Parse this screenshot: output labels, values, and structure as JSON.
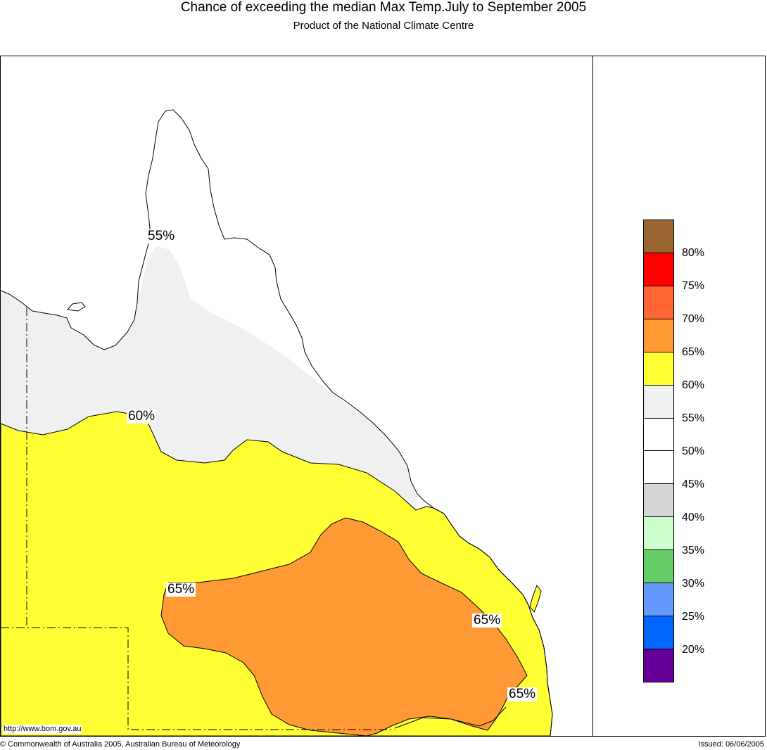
{
  "header": {
    "title": "Chance of exceeding the median Max Temp.July to September 2005",
    "subtitle": "Product of the National Climate Centre"
  },
  "map": {
    "url_text": "http://www.bom.gov.au",
    "contour_labels": [
      "55%",
      "60%",
      "65%",
      "65%",
      "65%"
    ],
    "region_colors": {
      "55-60": "#f0f0f0",
      "60-65": "#ffff33",
      "65-70": "#ff9933",
      "50-55": "#ffffff"
    }
  },
  "legend": {
    "labels": [
      "80%",
      "75%",
      "70%",
      "65%",
      "60%",
      "55%",
      "50%",
      "45%",
      "40%",
      "35%",
      "30%",
      "25%",
      "20%"
    ],
    "colors": [
      "#996633",
      "#ff0000",
      "#ff6633",
      "#ff9933",
      "#ffff33",
      "#f0f0f0",
      "#ffffff",
      "#ffffff",
      "#d6d6d6",
      "#ccffcc",
      "#66cc66",
      "#6699ff",
      "#0066ff",
      "#660099"
    ]
  },
  "footer": {
    "copyright": "© Commonwealth of Australia 2005, Australian Bureau of Meteorology",
    "issued": "Issued: 06/06/2005"
  }
}
